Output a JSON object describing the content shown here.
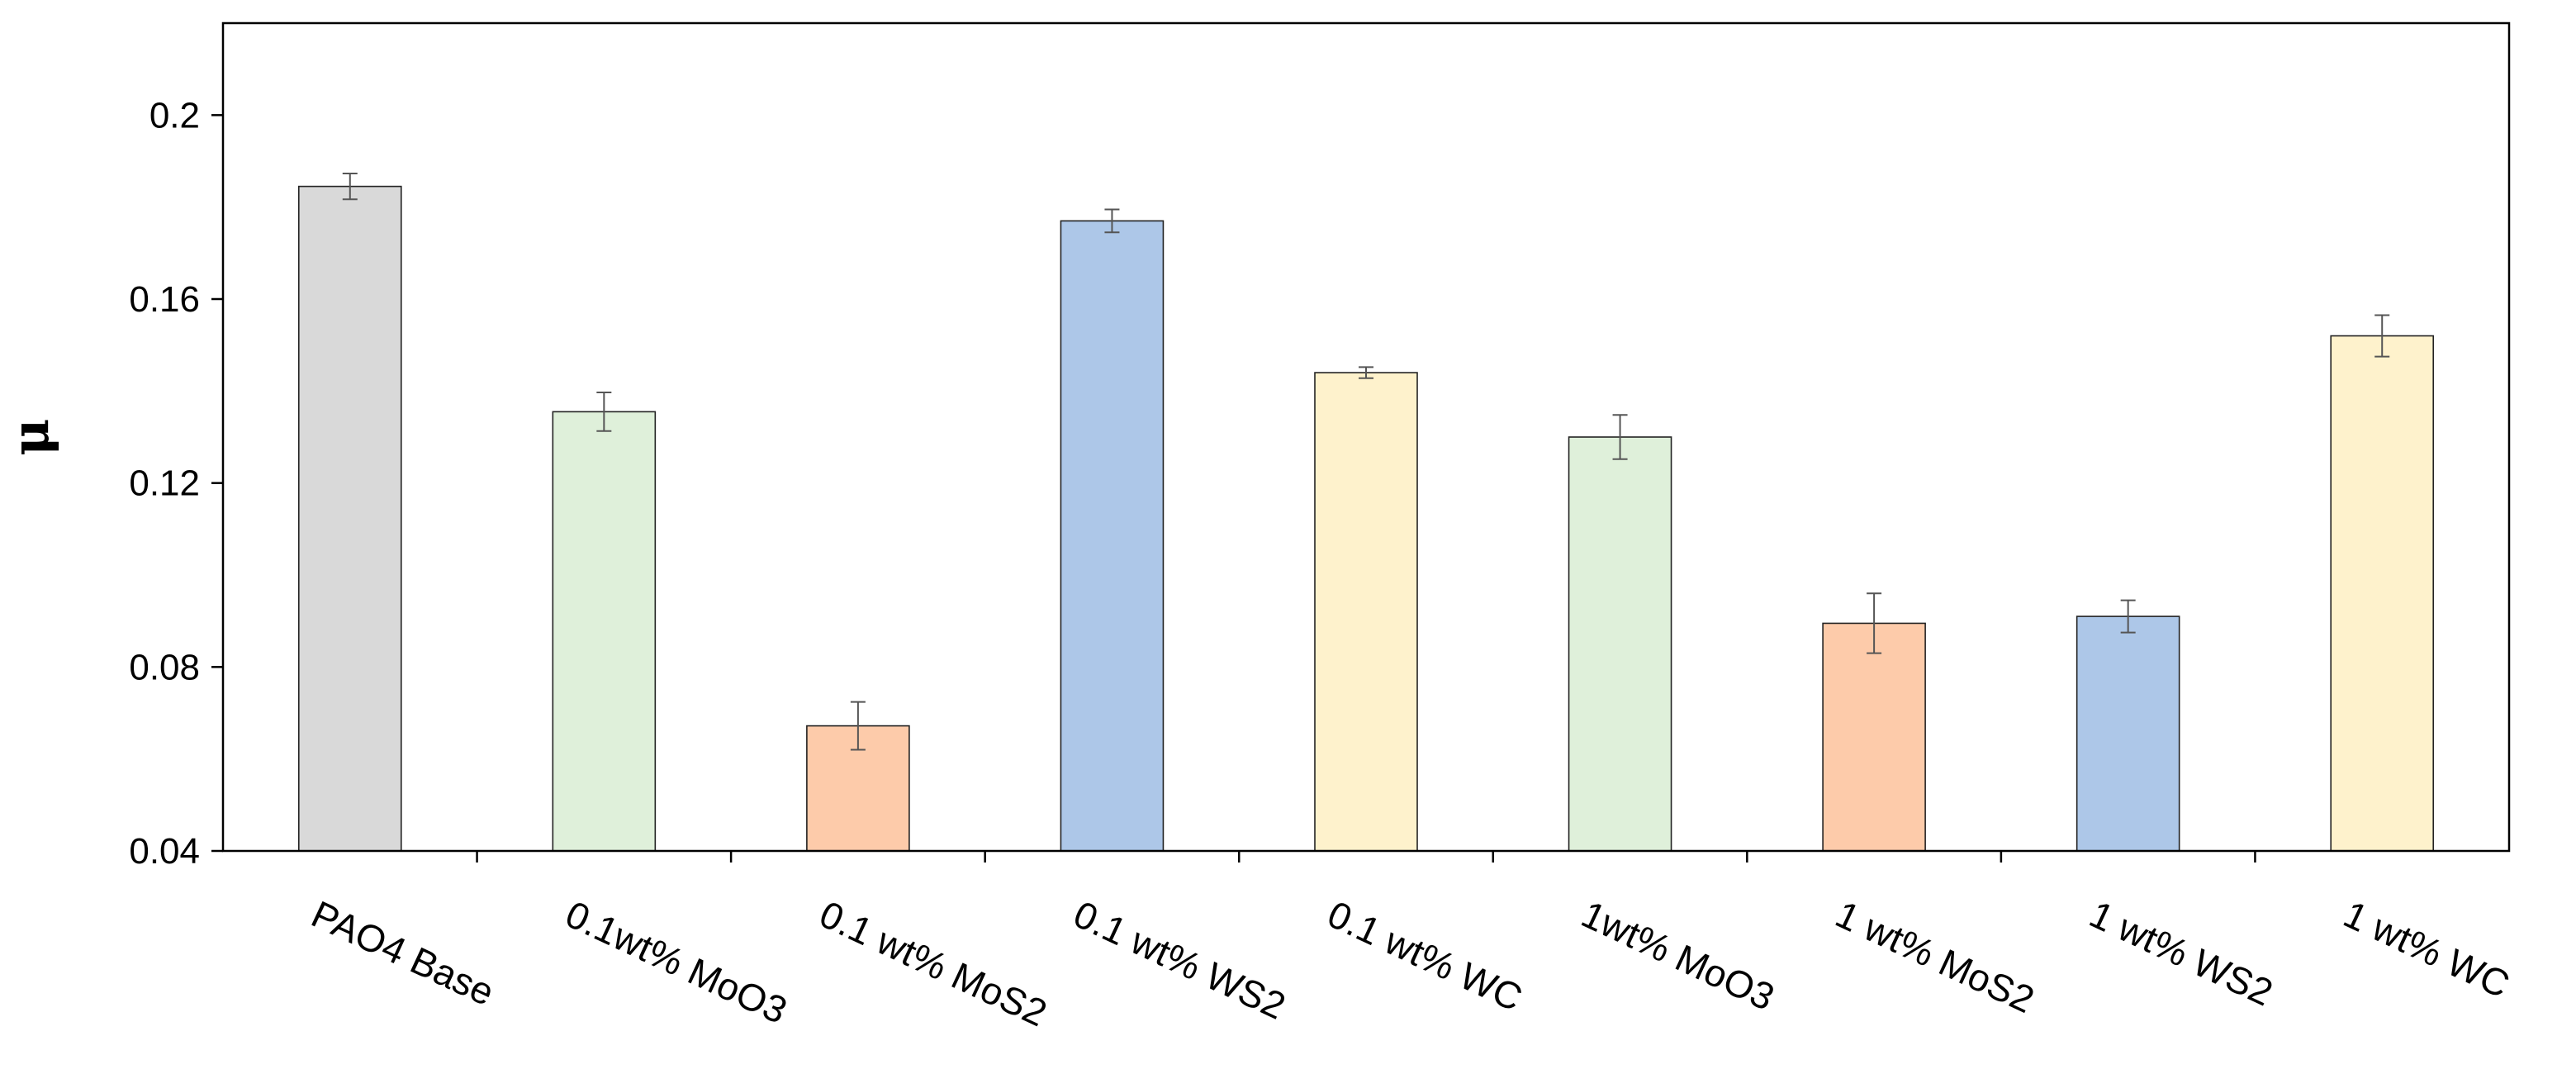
{
  "chart_data": {
    "type": "bar",
    "title": "",
    "xlabel": "",
    "ylabel": "μ",
    "ylim": [
      0.04,
      0.22
    ],
    "yticks": [
      "0.04",
      "0.08",
      "0.12",
      "0.16",
      "0.2"
    ],
    "ytick_values": [
      0.04,
      0.08,
      0.12,
      0.16,
      0.2
    ],
    "grid": false,
    "legend": "none",
    "categories": [
      "PAO4 Base",
      "0.1wt% MoO3",
      "0.1 wt% MoS2",
      "0.1 wt% WS2",
      "0.1 wt% WC",
      "1wt% MoO3",
      "1 wt% MoS2",
      "1 wt% WS2",
      "1 wt% WC"
    ],
    "values": [
      0.1845,
      0.1355,
      0.0672,
      0.177,
      0.144,
      0.13,
      0.0895,
      0.091,
      0.152
    ],
    "errors": [
      0.0028,
      0.0042,
      0.0052,
      0.0025,
      0.0012,
      0.0048,
      0.0065,
      0.0035,
      0.0045
    ],
    "colors": [
      "#d9d9d9",
      "#dff0da",
      "#fdcbaa",
      "#adc7e8",
      "#fef2cc",
      "#dff0da",
      "#fdcbaa",
      "#adc7e8",
      "#fef2cc"
    ]
  }
}
